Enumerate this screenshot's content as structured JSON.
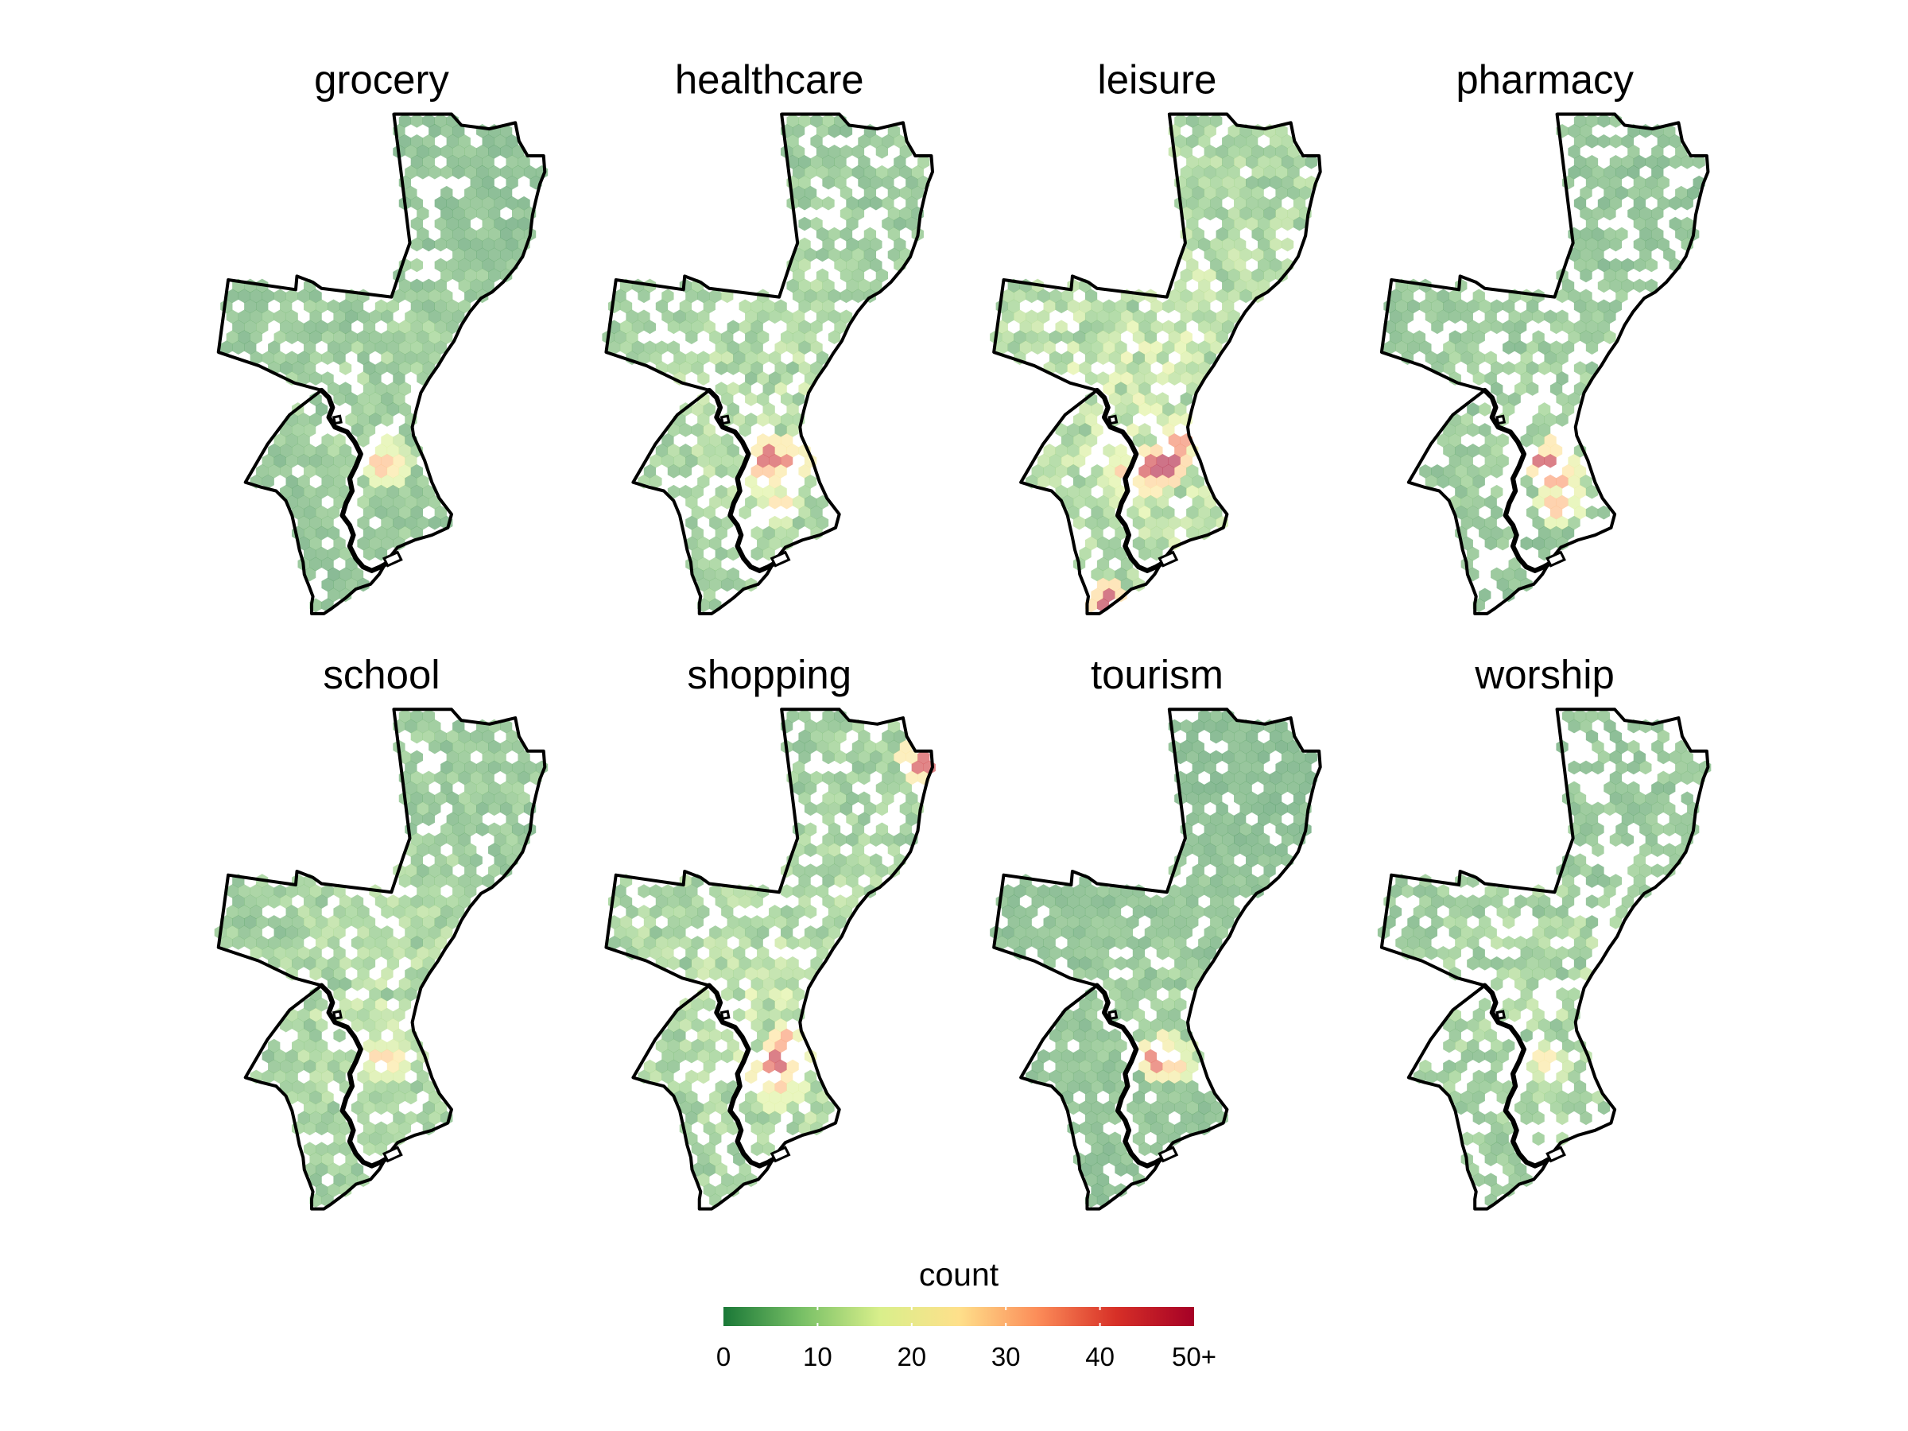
{
  "figure": {
    "panels": [
      {
        "title": "grocery",
        "hotspots": [
          {
            "count": 30
          },
          {
            "count": 24
          }
        ]
      },
      {
        "title": "healthcare",
        "hotspots": [
          {
            "count": 44
          },
          {
            "count": 40
          },
          {
            "count": 30
          },
          {
            "count": 26
          }
        ]
      },
      {
        "title": "leisure",
        "hotspots": [
          {
            "count": 50
          },
          {
            "count": 44
          },
          {
            "count": 36
          },
          {
            "count": 30
          },
          {
            "count": 48
          }
        ]
      },
      {
        "title": "pharmacy",
        "hotspots": [
          {
            "count": 46
          },
          {
            "count": 34
          },
          {
            "count": 30
          }
        ]
      },
      {
        "title": "school",
        "hotspots": [
          {
            "count": 28
          },
          {
            "count": 24
          }
        ]
      },
      {
        "title": "shopping",
        "hotspots": [
          {
            "count": 46
          },
          {
            "count": 40
          },
          {
            "count": 34
          },
          {
            "count": 44
          },
          {
            "count": 30
          }
        ]
      },
      {
        "title": "tourism",
        "hotspots": [
          {
            "count": 40
          },
          {
            "count": 28
          }
        ]
      },
      {
        "title": "worship",
        "hotspots": [
          {
            "count": 24
          }
        ]
      }
    ],
    "legend": {
      "title": "count",
      "ticks": [
        "0",
        "10",
        "20",
        "30",
        "40",
        "50+"
      ],
      "range": [
        0,
        50
      ],
      "colors": [
        "#1a7837",
        "#78c066",
        "#d9ef8b",
        "#fee08b",
        "#fc8d59",
        "#d73027",
        "#a50026"
      ]
    },
    "fill_opacity": 0.55,
    "boundary_color": "#000000"
  }
}
